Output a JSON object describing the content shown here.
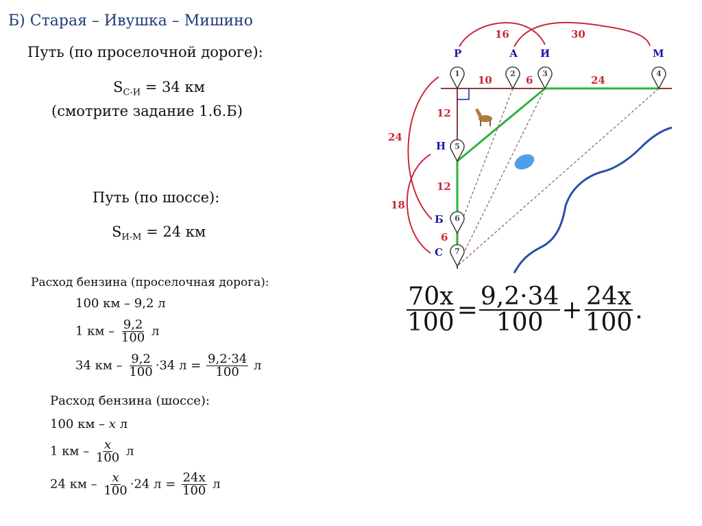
{
  "title": "Б) Старая – Ивушка – Мишино",
  "dirt_road": {
    "heading": "Путь (по проселочной дороге):",
    "formula": {
      "s": "S",
      "sub": "С-И",
      "eq": " = 34 км"
    },
    "note": "(смотрите задание 1.6.Б)"
  },
  "highway": {
    "heading": "Путь (по шоссе):",
    "formula": {
      "s": "S",
      "sub": "И-М",
      "eq": " = 24 км"
    }
  },
  "fuel_dirt": {
    "heading": "Расход бензина (проселочная дорога):",
    "line1": "100 км – 9,2 л",
    "line2": {
      "prefix": "1 км –",
      "num": "9,2",
      "den": "100",
      "suffix": "л"
    },
    "line3": {
      "prefix": "34 км –",
      "num": "9,2",
      "den": "100",
      "mid": "·34 л =",
      "num2": "9,2·34",
      "den2": "100",
      "suffix": "л"
    }
  },
  "fuel_highway": {
    "heading": "Расход бензина (шоссе):",
    "line1": {
      "prefix": "100 км –",
      "var": "x",
      "suffix": "л"
    },
    "line2": {
      "prefix": "1 км –",
      "num": "x",
      "den": "100",
      "suffix": "л"
    },
    "line3": {
      "prefix": "24 км –",
      "num": "x",
      "den": "100",
      "mid": "·24 л =",
      "num2": "24x",
      "den2": "100",
      "suffix": "л"
    }
  },
  "equation": {
    "lhs_num": "70x",
    "lhs_den": "100",
    "eq": "=",
    "t1_num": "9,2·34",
    "t1_den": "100",
    "plus": "+",
    "t2_num": "24x",
    "t2_den": "100",
    "end": "."
  },
  "map": {
    "top_labels": [
      "Р",
      "А",
      "И",
      "М"
    ],
    "side_labels": [
      "Н",
      "Б",
      "С"
    ],
    "pins": [
      "1",
      "2",
      "3",
      "4",
      "5",
      "6",
      "7"
    ],
    "distances": {
      "r_a": "10",
      "a_i": "6",
      "i_m": "24",
      "r_n": "12",
      "n_b": "12",
      "b_s": "6",
      "r_i": "16",
      "a_m": "30",
      "r_b": "24",
      "n_s": "18"
    },
    "colors": {
      "road": "#8b3a3a",
      "highway": "#2db33a",
      "labels": "#1a1aa8",
      "distances": "#c8283a",
      "river": "#2a4fa8",
      "lake": "#2e8fe0"
    }
  }
}
